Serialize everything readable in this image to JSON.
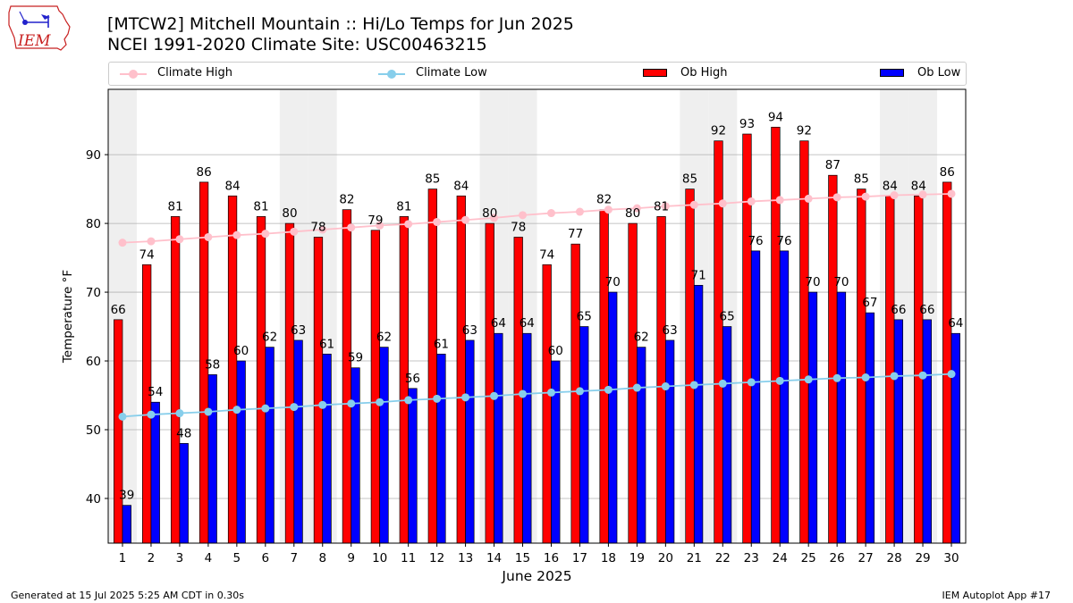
{
  "logo": {
    "text": "IEM",
    "icon": "iem-logo-icon"
  },
  "title_line1": "[MTCW2] Mitchell Mountain :: Hi/Lo Temps for Jun 2025",
  "title_line2": "NCEI 1991-2020 Climate Site: USC00463215",
  "footer_left": "Generated at 15 Jul 2025 5:25 AM CDT in 0.30s",
  "footer_right": "IEM Autoplot App #17",
  "colors": {
    "ob_high": "#ff0000",
    "ob_low": "#0000ff",
    "climate_high": "#ffc0cb",
    "climate_low": "#87ceeb",
    "weekend_shade": "#efefef",
    "grid": "#b0b0b0"
  },
  "chart_data": {
    "type": "bar",
    "xlabel": "June 2025",
    "ylabel": "Temperature °F",
    "ylim": [
      33.5,
      99.5
    ],
    "yticks": [
      40,
      50,
      60,
      70,
      80,
      90
    ],
    "grid": "horizontal",
    "legend_position": "top",
    "categories": [
      "1",
      "2",
      "3",
      "4",
      "5",
      "6",
      "7",
      "8",
      "9",
      "10",
      "11",
      "12",
      "13",
      "14",
      "15",
      "16",
      "17",
      "18",
      "19",
      "20",
      "21",
      "22",
      "23",
      "24",
      "25",
      "26",
      "27",
      "28",
      "29",
      "30"
    ],
    "shaded_days": [
      1,
      7,
      8,
      14,
      15,
      21,
      22,
      28,
      29
    ],
    "series": [
      {
        "name": "Climate High",
        "kind": "line",
        "values": [
          77.2,
          77.4,
          77.7,
          78.0,
          78.3,
          78.5,
          78.8,
          79.1,
          79.4,
          79.7,
          79.9,
          80.2,
          80.5,
          80.8,
          81.2,
          81.5,
          81.7,
          82.0,
          82.2,
          82.5,
          82.7,
          82.9,
          83.2,
          83.4,
          83.6,
          83.8,
          83.9,
          84.1,
          84.2,
          84.3
        ]
      },
      {
        "name": "Climate Low",
        "kind": "line",
        "values": [
          51.9,
          52.2,
          52.4,
          52.6,
          52.9,
          53.1,
          53.3,
          53.6,
          53.8,
          54.0,
          54.3,
          54.5,
          54.7,
          54.9,
          55.2,
          55.4,
          55.6,
          55.8,
          56.1,
          56.3,
          56.5,
          56.7,
          56.9,
          57.1,
          57.3,
          57.5,
          57.6,
          57.8,
          57.9,
          58.1
        ]
      },
      {
        "name": "Ob High",
        "kind": "bar",
        "values": [
          66,
          74,
          81,
          86,
          84,
          81,
          80,
          78,
          82,
          79,
          81,
          85,
          84,
          80,
          78,
          74,
          77,
          82,
          80,
          81,
          85,
          92,
          93,
          94,
          92,
          87,
          85,
          84,
          84,
          86
        ]
      },
      {
        "name": "Ob Low",
        "kind": "bar",
        "values": [
          39,
          54,
          48,
          58,
          60,
          62,
          63,
          61,
          59,
          62,
          56,
          61,
          63,
          64,
          64,
          60,
          65,
          70,
          62,
          63,
          71,
          65,
          76,
          76,
          70,
          70,
          67,
          66,
          66,
          64
        ]
      }
    ]
  }
}
